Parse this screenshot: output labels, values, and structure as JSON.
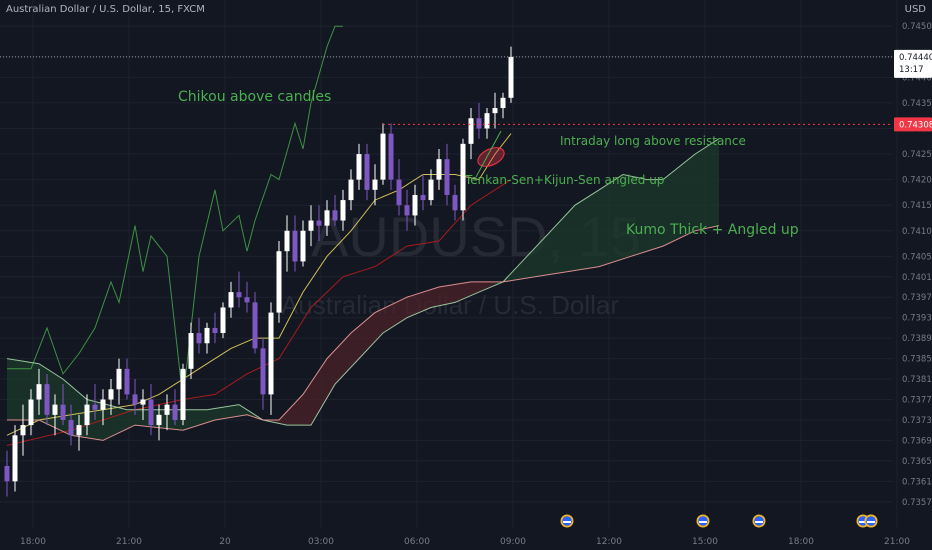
{
  "header": {
    "title": "Australian Dollar / U.S. Dollar, 15, FXCM",
    "currency": "USD"
  },
  "price_tag": {
    "price": "0.74440",
    "countdown": "13:17"
  },
  "resistance_tag": {
    "price": "0.74308"
  },
  "watermark": {
    "symbol": "AUDUSD, 15",
    "name": "Australian Dollar / U.S. Dollar"
  },
  "annotations": {
    "chikou": "Chikou above candles",
    "resistance": "Intraday long above resistance",
    "tenkan_kijun": "Tenkan-Sen+Kijun-Sen angled up",
    "kumo": "Kumo Thick + Angled up"
  },
  "colors": {
    "background": "#131722",
    "up_candle": "#ffffff",
    "down_candle": "#7e57c2",
    "tenkan": "#e8d25e",
    "kijun": "#b71c1c",
    "chikou": "#43a047",
    "span_a": "#a5d6a7",
    "span_b": "#ef9a9a",
    "kumo_bull": "#1b3a2a",
    "kumo_bear": "#4a2228",
    "resistance": "#f23645",
    "annotation_text": "#4caf50",
    "axis_text": "#787b86"
  },
  "chart_data": {
    "type": "candlestick",
    "symbol": "AUDUSD",
    "timeframe": "15",
    "ylim": [
      0.7355,
      0.7452
    ],
    "y_ticks": [
      0.745,
      0.7444,
      0.744,
      0.7435,
      0.743,
      0.7425,
      0.742,
      0.7415,
      0.741,
      0.7405,
      0.7401,
      0.7397,
      0.7393,
      0.7389,
      0.7385,
      0.7381,
      0.7377,
      0.7373,
      0.7369,
      0.7365,
      0.7361,
      0.7357
    ],
    "y_tick_labels": [
      "0.74500",
      "0.74450",
      "0.74400",
      "0.74350",
      "0.74300",
      "0.74250",
      "0.74200",
      "0.74150",
      "0.74100",
      "0.74050",
      "0.74010",
      "0.73970",
      "0.73930",
      "0.73890",
      "0.73850",
      "0.73810",
      "0.73770",
      "0.73730",
      "0.73690",
      "0.73650",
      "0.73610",
      "0.73570"
    ],
    "x_ticks": [
      "18:00",
      "21:00",
      "20",
      "03:00",
      "06:00",
      "09:00",
      "12:00",
      "15:00",
      "18:00",
      "21:00",
      "21"
    ],
    "last_price": 0.7444,
    "resistance": 0.74308,
    "grid": true,
    "x_start": "17:15",
    "bars_per_hour": 4,
    "candles": [
      [
        0.7364,
        0.7367,
        0.7358,
        0.7361
      ],
      [
        0.7361,
        0.7372,
        0.7359,
        0.737
      ],
      [
        0.737,
        0.7376,
        0.7366,
        0.7372
      ],
      [
        0.7372,
        0.7379,
        0.737,
        0.7377
      ],
      [
        0.7377,
        0.7383,
        0.7374,
        0.738
      ],
      [
        0.738,
        0.7382,
        0.7372,
        0.7374
      ],
      [
        0.7374,
        0.7378,
        0.737,
        0.7376
      ],
      [
        0.7376,
        0.738,
        0.7372,
        0.7373
      ],
      [
        0.7373,
        0.7376,
        0.7368,
        0.737
      ],
      [
        0.737,
        0.7374,
        0.7367,
        0.7372
      ],
      [
        0.7372,
        0.7378,
        0.737,
        0.7376
      ],
      [
        0.7376,
        0.738,
        0.7373,
        0.7375
      ],
      [
        0.7375,
        0.7379,
        0.7372,
        0.7377
      ],
      [
        0.7377,
        0.7381,
        0.7374,
        0.7379
      ],
      [
        0.7379,
        0.7385,
        0.7376,
        0.7383
      ],
      [
        0.7383,
        0.7385,
        0.7377,
        0.7378
      ],
      [
        0.7378,
        0.7381,
        0.7374,
        0.7376
      ],
      [
        0.7376,
        0.7379,
        0.7373,
        0.7377
      ],
      [
        0.7377,
        0.738,
        0.737,
        0.7372
      ],
      [
        0.7372,
        0.7376,
        0.7369,
        0.7374
      ],
      [
        0.7374,
        0.7378,
        0.7371,
        0.7376
      ],
      [
        0.7376,
        0.7379,
        0.7372,
        0.7373
      ],
      [
        0.7373,
        0.7384,
        0.7372,
        0.7383
      ],
      [
        0.7383,
        0.7392,
        0.7381,
        0.739
      ],
      [
        0.739,
        0.7393,
        0.7386,
        0.7388
      ],
      [
        0.7388,
        0.7392,
        0.7386,
        0.7391
      ],
      [
        0.7391,
        0.7394,
        0.7388,
        0.739
      ],
      [
        0.739,
        0.7396,
        0.7389,
        0.7395
      ],
      [
        0.7395,
        0.74,
        0.7393,
        0.7398
      ],
      [
        0.7398,
        0.7402,
        0.7395,
        0.7397
      ],
      [
        0.7397,
        0.74,
        0.7394,
        0.7396
      ],
      [
        0.7396,
        0.7398,
        0.7386,
        0.7387
      ],
      [
        0.7387,
        0.7389,
        0.7375,
        0.7378
      ],
      [
        0.7378,
        0.7396,
        0.7374,
        0.7394
      ],
      [
        0.7394,
        0.7408,
        0.7392,
        0.7406
      ],
      [
        0.7406,
        0.7413,
        0.7402,
        0.741
      ],
      [
        0.741,
        0.7413,
        0.7402,
        0.7404
      ],
      [
        0.7404,
        0.7412,
        0.7403,
        0.741
      ],
      [
        0.741,
        0.7415,
        0.7407,
        0.7412
      ],
      [
        0.7412,
        0.7415,
        0.7408,
        0.7411
      ],
      [
        0.7411,
        0.7416,
        0.7409,
        0.7414
      ],
      [
        0.7414,
        0.7417,
        0.7411,
        0.7412
      ],
      [
        0.7412,
        0.7418,
        0.741,
        0.7416
      ],
      [
        0.7416,
        0.7422,
        0.7414,
        0.742
      ],
      [
        0.742,
        0.7427,
        0.7418,
        0.7425
      ],
      [
        0.7425,
        0.7427,
        0.7416,
        0.7418
      ],
      [
        0.7418,
        0.7423,
        0.7415,
        0.742
      ],
      [
        0.742,
        0.7431,
        0.7419,
        0.7429
      ],
      [
        0.7429,
        0.7431,
        0.7418,
        0.742
      ],
      [
        0.742,
        0.7424,
        0.7413,
        0.7415
      ],
      [
        0.7415,
        0.7418,
        0.741,
        0.7413
      ],
      [
        0.7413,
        0.7419,
        0.7411,
        0.7417
      ],
      [
        0.7417,
        0.7421,
        0.7414,
        0.7416
      ],
      [
        0.7416,
        0.7422,
        0.7415,
        0.742
      ],
      [
        0.742,
        0.7426,
        0.7418,
        0.7424
      ],
      [
        0.7424,
        0.7427,
        0.7415,
        0.7417
      ],
      [
        0.7417,
        0.7419,
        0.7412,
        0.7414
      ],
      [
        0.7414,
        0.7428,
        0.7412,
        0.7427
      ],
      [
        0.7427,
        0.7434,
        0.7424,
        0.7432
      ],
      [
        0.7432,
        0.7435,
        0.7428,
        0.743
      ],
      [
        0.743,
        0.7434,
        0.7428,
        0.7433
      ],
      [
        0.7433,
        0.7437,
        0.743,
        0.7434
      ],
      [
        0.7434,
        0.7437,
        0.7432,
        0.7436
      ],
      [
        0.7436,
        0.7446,
        0.7435,
        0.7444
      ]
    ],
    "series": [
      {
        "name": "Tenkan-Sen",
        "color": "#e8d25e",
        "points": [
          [
            0,
            0.737
          ],
          [
            4,
            0.7373
          ],
          [
            8,
            0.7374
          ],
          [
            12,
            0.7375
          ],
          [
            16,
            0.7376
          ],
          [
            19,
            0.7378
          ],
          [
            22,
            0.7381
          ],
          [
            25,
            0.7384
          ],
          [
            28,
            0.7387
          ],
          [
            31,
            0.7389
          ],
          [
            34,
            0.7389
          ],
          [
            37,
            0.7398
          ],
          [
            40,
            0.7405
          ],
          [
            43,
            0.741
          ],
          [
            46,
            0.7416
          ],
          [
            49,
            0.7418
          ],
          [
            52,
            0.7421
          ],
          [
            56,
            0.7421
          ],
          [
            59,
            0.742
          ],
          [
            61,
            0.7425
          ],
          [
            63,
            0.7429
          ]
        ]
      },
      {
        "name": "Kijun-Sen",
        "color": "#b71c1c",
        "points": [
          [
            0,
            0.7368
          ],
          [
            8,
            0.7371
          ],
          [
            16,
            0.7375
          ],
          [
            22,
            0.7377
          ],
          [
            26,
            0.7378
          ],
          [
            30,
            0.7382
          ],
          [
            34,
            0.7385
          ],
          [
            38,
            0.7395
          ],
          [
            42,
            0.7401
          ],
          [
            46,
            0.7403
          ],
          [
            50,
            0.7407
          ],
          [
            54,
            0.7408
          ],
          [
            58,
            0.7415
          ],
          [
            63,
            0.742
          ]
        ]
      },
      {
        "name": "Chikou Span",
        "color": "#43a047",
        "points": [
          [
            0,
            0.7383
          ],
          [
            3,
            0.7383
          ],
          [
            5,
            0.7391
          ],
          [
            7,
            0.7382
          ],
          [
            9,
            0.7386
          ],
          [
            11,
            0.7391
          ],
          [
            13,
            0.74
          ],
          [
            14,
            0.7396
          ],
          [
            16,
            0.7411
          ],
          [
            17,
            0.7402
          ],
          [
            18,
            0.7409
          ],
          [
            20,
            0.7405
          ],
          [
            22,
            0.7377
          ],
          [
            24,
            0.7405
          ],
          [
            26,
            0.7418
          ],
          [
            27,
            0.741
          ],
          [
            29,
            0.7413
          ],
          [
            30,
            0.7406
          ],
          [
            31,
            0.7412
          ],
          [
            33,
            0.7421
          ],
          [
            34,
            0.742
          ],
          [
            36,
            0.7431
          ],
          [
            37,
            0.7426
          ],
          [
            38,
            0.7435
          ],
          [
            40,
            0.7446
          ],
          [
            41,
            0.745
          ],
          [
            42,
            0.745
          ]
        ]
      },
      {
        "name": "Senkou Span A",
        "color": "#a5d6a7",
        "points": [
          [
            0,
            0.7385
          ],
          [
            4,
            0.7384
          ],
          [
            7,
            0.7381
          ],
          [
            10,
            0.7377
          ],
          [
            15,
            0.7375
          ],
          [
            20,
            0.7375
          ],
          [
            25,
            0.7375
          ],
          [
            29,
            0.7376
          ],
          [
            32,
            0.7373
          ],
          [
            35,
            0.7372
          ],
          [
            38,
            0.7372
          ],
          [
            41,
            0.738
          ],
          [
            44,
            0.7385
          ],
          [
            47,
            0.739
          ],
          [
            50,
            0.7393
          ],
          [
            53,
            0.7395
          ],
          [
            56,
            0.7396
          ],
          [
            59,
            0.7398
          ],
          [
            62,
            0.74
          ],
          [
            65,
            0.7405
          ],
          [
            68,
            0.741
          ],
          [
            71,
            0.7415
          ],
          [
            74,
            0.7418
          ],
          [
            77,
            0.7421
          ],
          [
            80,
            0.742
          ],
          [
            82,
            0.742
          ],
          [
            86,
            0.7425
          ],
          [
            89,
            0.7428
          ]
        ]
      },
      {
        "name": "Senkou Span B",
        "color": "#ef9a9a",
        "points": [
          [
            0,
            0.7373
          ],
          [
            4,
            0.7373
          ],
          [
            8,
            0.737
          ],
          [
            12,
            0.7369
          ],
          [
            16,
            0.7372
          ],
          [
            22,
            0.7371
          ],
          [
            26,
            0.7373
          ],
          [
            30,
            0.7374
          ],
          [
            32,
            0.7373
          ],
          [
            34,
            0.7373
          ],
          [
            37,
            0.7378
          ],
          [
            40,
            0.7385
          ],
          [
            43,
            0.739
          ],
          [
            46,
            0.7394
          ],
          [
            50,
            0.7397
          ],
          [
            54,
            0.7399
          ],
          [
            58,
            0.74
          ],
          [
            62,
            0.74
          ],
          [
            66,
            0.7401
          ],
          [
            70,
            0.7402
          ],
          [
            74,
            0.7403
          ],
          [
            78,
            0.7405
          ],
          [
            82,
            0.7407
          ],
          [
            86,
            0.741
          ],
          [
            89,
            0.7411
          ]
        ]
      }
    ],
    "events": [
      "15:45",
      "16:00",
      "17:45",
      "18:45",
      "19:30",
      "07:45"
    ]
  }
}
